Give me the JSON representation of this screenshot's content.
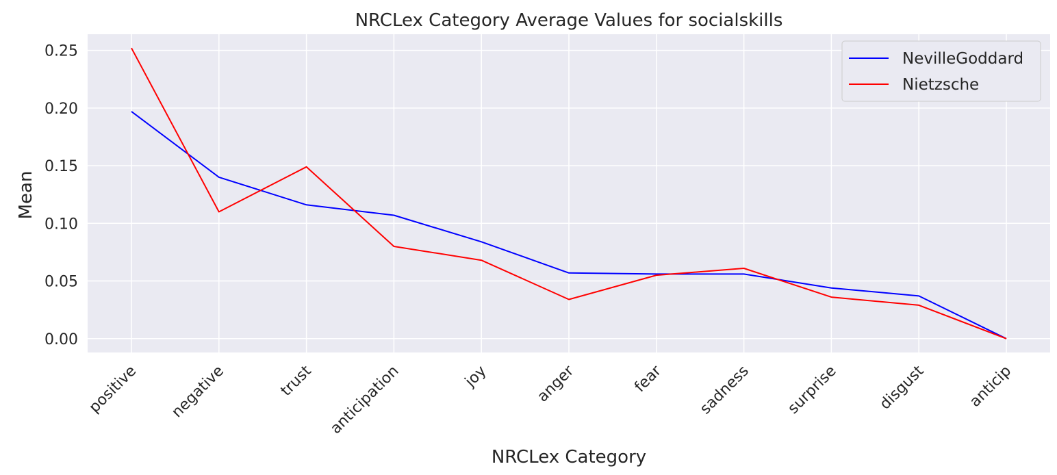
{
  "chart_data": {
    "type": "line",
    "title": "NRCLex Category Average Values for socialskills",
    "xlabel": "NRCLex Category",
    "ylabel": "Mean",
    "categories": [
      "positive",
      "negative",
      "trust",
      "anticipation",
      "joy",
      "anger",
      "fear",
      "sadness",
      "surprise",
      "disgust",
      "anticip"
    ],
    "ylim": [
      -0.012,
      0.264
    ],
    "yticks": [
      0.0,
      0.05,
      0.1,
      0.15,
      0.2,
      0.25
    ],
    "ytick_labels": [
      "0.00",
      "0.05",
      "0.10",
      "0.15",
      "0.20",
      "0.25"
    ],
    "grid": true,
    "legend_position": "top-right",
    "series": [
      {
        "name": "NevilleGoddard",
        "color": "#0000ff",
        "values": [
          0.197,
          0.14,
          0.116,
          0.107,
          0.084,
          0.057,
          0.056,
          0.056,
          0.044,
          0.037,
          0.0
        ]
      },
      {
        "name": "Nietzsche",
        "color": "#ff0000",
        "values": [
          0.252,
          0.11,
          0.149,
          0.08,
          0.068,
          0.034,
          0.055,
          0.061,
          0.036,
          0.029,
          0.0
        ]
      }
    ]
  }
}
